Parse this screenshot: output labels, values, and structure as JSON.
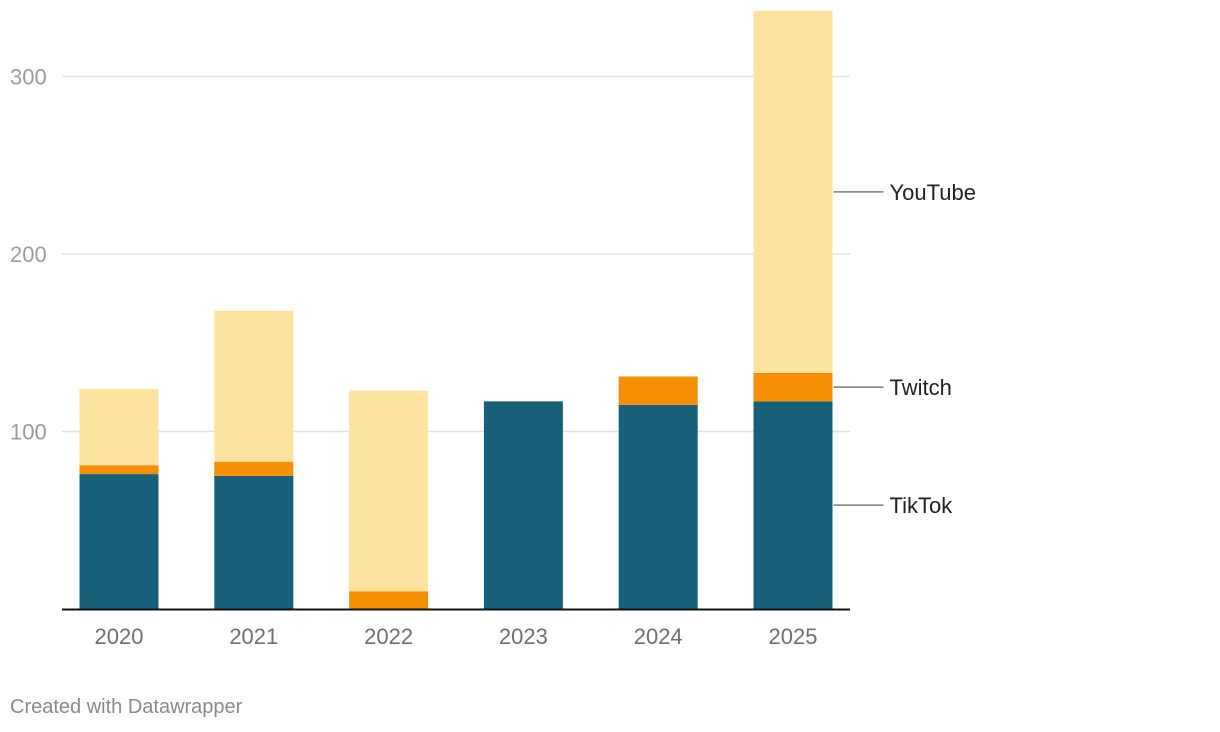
{
  "chart_data": {
    "type": "bar",
    "stacked": true,
    "categories": [
      "2020",
      "2021",
      "2022",
      "2023",
      "2024",
      "2025"
    ],
    "series": [
      {
        "name": "TikTok",
        "values": [
          76,
          75,
          0,
          117,
          115,
          117
        ],
        "color": "#17607a"
      },
      {
        "name": "Twitch",
        "values": [
          5,
          8,
          10,
          0,
          16,
          16
        ],
        "color": "#f78f04"
      },
      {
        "name": "YouTube",
        "values": [
          43,
          85,
          113,
          0,
          0,
          204
        ],
        "color": "#fee39e"
      }
    ],
    "yticks": [
      100,
      200,
      300
    ],
    "ylim": [
      0,
      340
    ],
    "title": "",
    "xlabel": "",
    "ylabel": "",
    "legend": "right (direct labels)",
    "grid": true
  },
  "footer": {
    "text": "Created with Datawrapper"
  }
}
